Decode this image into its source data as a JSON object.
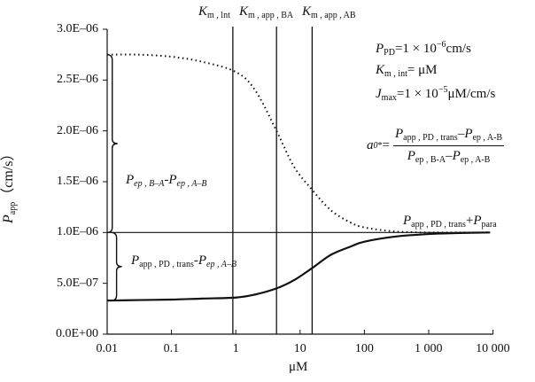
{
  "chart_data": {
    "type": "line",
    "xscale": "log",
    "xlim": [
      0.01,
      10000
    ],
    "ylim": [
      0,
      3e-06
    ],
    "xlabel": "μM",
    "ylabel": {
      "main": "P",
      "sub": "app",
      "unit": "（cm/s）"
    },
    "xticks": [
      0.01,
      0.1,
      1,
      10,
      100,
      1000,
      10000
    ],
    "xtick_labels": [
      "0.01",
      "0.1",
      "1",
      "10",
      "100",
      "1 000",
      "10 000"
    ],
    "yticks": [
      0,
      5e-07,
      1e-06,
      1.5e-06,
      2e-06,
      2.5e-06,
      3e-06
    ],
    "ytick_labels": [
      "0.0E+00",
      "5.0E–07",
      "1.0E–06",
      "1.5E–06",
      "2.0E–06",
      "2.5E–06",
      "3.0E–06"
    ],
    "grid": false,
    "series": [
      {
        "style": "dotted",
        "x": [
          0.01,
          0.03,
          0.1,
          0.3,
          1,
          2,
          4.3,
          8,
          15.4,
          30,
          60,
          100,
          300,
          1000,
          3000,
          9000
        ],
        "y": [
          2.75e-06,
          2.75e-06,
          2.73e-06,
          2.68e-06,
          2.58e-06,
          2.4e-06,
          2e-06,
          1.65e-06,
          1.42e-06,
          1.22e-06,
          1.1e-06,
          1.05e-06,
          1.01e-06,
          1e-06,
          1e-06,
          1e-06
        ]
      },
      {
        "style": "solid",
        "x": [
          0.01,
          0.03,
          0.1,
          0.3,
          1,
          2,
          4.3,
          8,
          15.4,
          30,
          60,
          100,
          300,
          1000,
          3000,
          9000
        ],
        "y": [
          3.3e-07,
          3.35e-07,
          3.4e-07,
          3.5e-07,
          3.6e-07,
          3.9e-07,
          4.5e-07,
          5.3e-07,
          6.5e-07,
          7.8e-07,
          8.6e-07,
          9.1e-07,
          9.6e-07,
          9.85e-07,
          9.95e-07,
          1e-06
        ]
      }
    ],
    "hline": {
      "y": 1e-06
    },
    "vlines": [
      {
        "x": 0.9,
        "label": {
          "main": "K",
          "sub": "m , lnt"
        }
      },
      {
        "x": 4.3,
        "label": {
          "main": "K",
          "sub": "m , app , BA"
        }
      },
      {
        "x": 15.4,
        "label": {
          "main": "K",
          "sub": "m , app , AB"
        }
      }
    ],
    "braces": [
      {
        "x": 0.012,
        "y_top": 2.75e-06,
        "y_bottom": 1e-06
      },
      {
        "x": 0.014,
        "y_top": 1e-06,
        "y_bottom": 3.3e-07
      }
    ],
    "annotations": {
      "brace1": {
        "a": "P",
        "a_sub": "ep , B–A",
        "sep": "-",
        "b": "P",
        "b_sub": "ep , A–B"
      },
      "brace2": {
        "a": "P",
        "a_sub": "app , PD , trans",
        "sep": "-",
        "b": "P",
        "b_sub": "ep , A–B"
      },
      "plateau": {
        "a": "P",
        "a_sub": "app , PD , trans",
        "sep": "+",
        "b": "P",
        "b_sub": "para"
      },
      "params": [
        {
          "v": "P",
          "sub": "PD",
          "rest1": "=1 × 10",
          "sup": "−6",
          "rest2": "cm/s"
        },
        {
          "v": "K",
          "sub": "m , int",
          "rest1": "= μM",
          "sup": "",
          "rest2": ""
        },
        {
          "v": "J",
          "sub": "max",
          "rest1": "=1 × 10",
          "sup": "−5",
          "rest2": "μM/cm/s"
        }
      ],
      "formula": {
        "lhs": "a",
        "lhs_sub": "0",
        "lhs_sup": "*",
        "eq": "=",
        "num_a": "P",
        "num_a_sub": "app , PD , trans",
        "num_sep": "–",
        "num_b": "P",
        "num_b_sub": "ep , A-B",
        "den_a": "P",
        "den_a_sub": "ep , B-A",
        "den_sep": "–",
        "den_b": "P",
        "den_b_sub": "ep , A-B"
      }
    }
  }
}
